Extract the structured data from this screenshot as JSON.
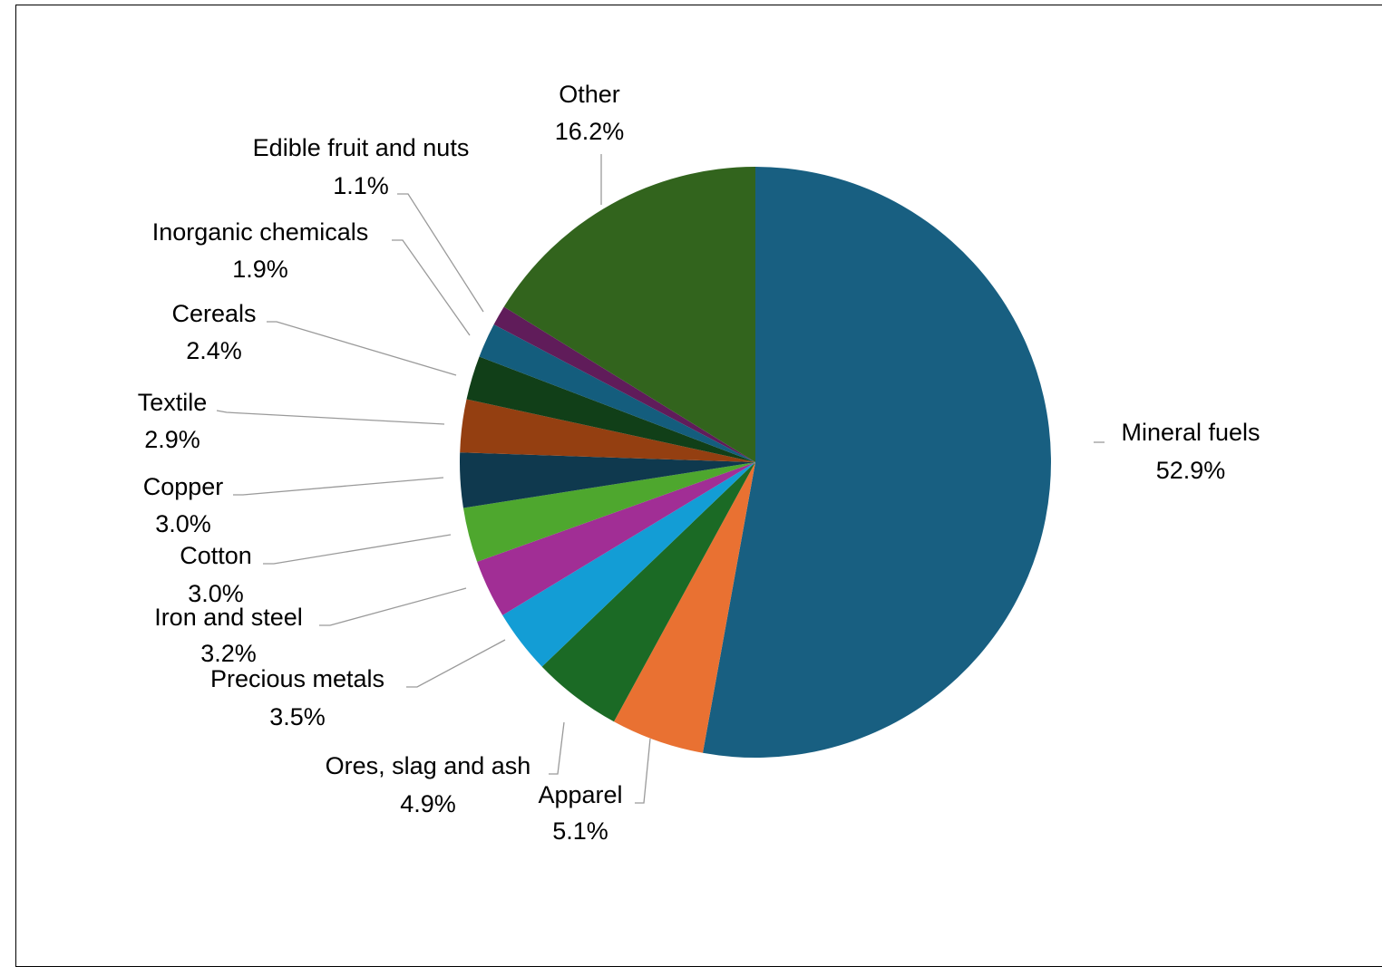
{
  "chart_data": {
    "type": "pie",
    "title": "",
    "start_angle_deg": 0,
    "direction": "clockwise",
    "slices": [
      {
        "label": "Mineral fuels",
        "value": 52.9,
        "display": "52.9%",
        "color": "#185F81"
      },
      {
        "label": "Apparel",
        "value": 5.1,
        "display": "5.1%",
        "color": "#E97132"
      },
      {
        "label": "Ores, slag and ash",
        "value": 4.9,
        "display": "4.9%",
        "color": "#1B6A25"
      },
      {
        "label": "Precious metals",
        "value": 3.5,
        "display": "3.5%",
        "color": "#139DD5"
      },
      {
        "label": "Iron and steel",
        "value": 3.2,
        "display": "3.2%",
        "color": "#A12E95"
      },
      {
        "label": "Cotton",
        "value": 3.0,
        "display": "3.0%",
        "color": "#4EA72E"
      },
      {
        "label": "Copper",
        "value": 3.0,
        "display": "3.0%",
        "color": "#0F394E"
      },
      {
        "label": "Textile",
        "value": 2.9,
        "display": "2.9%",
        "color": "#943F11"
      },
      {
        "label": "Cereals",
        "value": 2.4,
        "display": "2.4%",
        "color": "#113F18"
      },
      {
        "label": "Inorganic chemicals",
        "value": 1.9,
        "display": "1.9%",
        "color": "#145D7D"
      },
      {
        "label": "Edible fruit and nuts",
        "value": 1.1,
        "display": "1.1%",
        "color": "#601C5A"
      },
      {
        "label": "Other",
        "value": 16.2,
        "display": "16.2%",
        "color": "#32641D"
      }
    ]
  }
}
